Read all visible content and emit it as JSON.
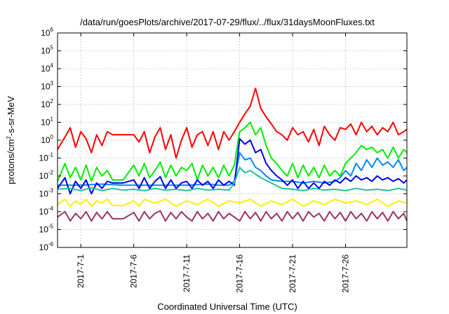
{
  "chart_data": {
    "type": "line",
    "title": "/data/run/goesPlots/archive/2017-07-29/flux/../flux/31daysMoonFluxes.txt",
    "xlabel": "Coordinated Universal Time (UTC)",
    "ylabel": {
      "main": "protons/cm",
      "sup": "2",
      "rest": "-s-sr-MeV"
    },
    "yscale": "log",
    "ylim": [
      1e-06,
      1000000.0
    ],
    "xlim": [
      -2.2,
      30.8
    ],
    "grid": true,
    "ytick_labels": [
      {
        "value": 1e-06,
        "exp": "-6"
      },
      {
        "value": 1e-05,
        "exp": "-5"
      },
      {
        "value": 0.0001,
        "exp": "-4"
      },
      {
        "value": 0.001,
        "exp": "-3"
      },
      {
        "value": 0.01,
        "exp": "-2"
      },
      {
        "value": 0.1,
        "exp": "-1"
      },
      {
        "value": 1,
        "exp": "0"
      },
      {
        "value": 10,
        "exp": "1"
      },
      {
        "value": 100,
        "exp": "2"
      },
      {
        "value": 1000,
        "exp": "3"
      },
      {
        "value": 10000,
        "exp": "4"
      },
      {
        "value": 100000,
        "exp": "5"
      },
      {
        "value": 1000000,
        "exp": "6"
      }
    ],
    "ytick_base": "10",
    "xtick_labels": [
      {
        "day": 0,
        "label": "2017-7-1"
      },
      {
        "day": 5,
        "label": "2017-7-6"
      },
      {
        "day": 10,
        "label": "2017-7-11"
      },
      {
        "day": 15,
        "label": "2017-7-16"
      },
      {
        "day": 20,
        "label": "2017-7-21"
      },
      {
        "day": 25,
        "label": "2017-7-26"
      }
    ],
    "series": [
      {
        "color": "#ff0000",
        "x": [
          -2.2,
          -1.5,
          -1,
          -0.5,
          0,
          0.5,
          1,
          1.5,
          2,
          2.5,
          3,
          4,
          5,
          5.5,
          6,
          6.5,
          7,
          7.5,
          8,
          8.5,
          9,
          9.5,
          10,
          10.5,
          11,
          11.5,
          12,
          12.5,
          13,
          13.5,
          14,
          14.5,
          15,
          15.5,
          16,
          16.5,
          17,
          17.5,
          18,
          18.5,
          19,
          19.5,
          20,
          20.5,
          21,
          21.5,
          22,
          22.5,
          23,
          23.5,
          24,
          24.5,
          25,
          25.5,
          26,
          26.5,
          27,
          27.5,
          28,
          28.5,
          29,
          29.5,
          30,
          30.5,
          30.8
        ],
        "y": [
          0.3,
          1.5,
          5,
          0.4,
          3,
          1.2,
          0.2,
          2,
          0.5,
          3,
          2,
          2,
          2,
          0.8,
          3,
          0.2,
          1.5,
          5,
          0.3,
          2,
          0.1,
          1,
          5,
          0.4,
          2,
          3,
          0.5,
          3,
          0.3,
          3,
          1,
          3,
          10,
          30,
          80,
          800,
          60,
          20,
          8,
          3,
          2,
          1,
          5,
          2,
          3,
          0.8,
          4,
          0.5,
          6,
          2,
          1,
          5,
          4,
          8,
          2,
          10,
          3,
          6,
          2,
          5,
          3,
          10,
          2,
          3,
          4
        ]
      },
      {
        "color": "#00ee00",
        "x": [
          -2.2,
          -1.5,
          -1,
          -0.5,
          0,
          0.5,
          1,
          1.5,
          2,
          2.5,
          3,
          4,
          5,
          5.5,
          6,
          6.5,
          7,
          7.5,
          8,
          8.5,
          9,
          9.5,
          10,
          10.5,
          11,
          11.5,
          12,
          12.5,
          13,
          13.5,
          14,
          14.5,
          15,
          15.5,
          16,
          16.5,
          17,
          17.5,
          18,
          18.5,
          19,
          19.5,
          20,
          20.5,
          21,
          21.5,
          22,
          22.5,
          23,
          23.5,
          24,
          24.5,
          25,
          25.5,
          26,
          26.5,
          27,
          27.5,
          28,
          28.5,
          29,
          29.5,
          30,
          30.5,
          30.8
        ],
        "y": [
          0.005,
          0.05,
          0.008,
          0.03,
          0.006,
          0.04,
          0.005,
          0.03,
          0.01,
          0.02,
          0.006,
          0.006,
          0.04,
          0.01,
          0.05,
          0.008,
          0.02,
          0.06,
          0.008,
          0.04,
          0.01,
          0.03,
          0.02,
          0.05,
          0.006,
          0.04,
          0.01,
          0.03,
          0.008,
          0.04,
          0.01,
          0.04,
          3,
          5,
          10,
          2,
          5,
          0.5,
          0.1,
          0.05,
          0.02,
          0.01,
          0.05,
          0.008,
          0.04,
          0.01,
          0.03,
          0.008,
          0.04,
          0.01,
          0.02,
          0.01,
          0.05,
          0.1,
          0.2,
          0.5,
          0.3,
          0.4,
          0.2,
          0.3,
          0.1,
          0.4,
          0.1,
          0.3,
          0.2
        ]
      },
      {
        "color": "#0088ff",
        "x": [
          -2.2,
          0,
          2,
          4,
          6,
          8,
          10,
          12,
          13,
          14,
          14.5,
          15,
          15.5,
          16,
          16.5,
          17,
          17.5,
          18,
          19,
          20,
          21,
          22,
          23,
          24,
          24.5,
          25,
          25.5,
          26,
          26.5,
          27,
          27.5,
          28,
          28.5,
          29,
          29.5,
          30,
          30.5,
          30.8
        ],
        "y": [
          0.003,
          0.003,
          0.0035,
          0.003,
          0.003,
          0.003,
          0.003,
          0.0035,
          0.003,
          0.003,
          0.005,
          0.2,
          0.08,
          0.1,
          0.03,
          0.02,
          0.01,
          0.006,
          0.005,
          0.005,
          0.004,
          0.005,
          0.004,
          0.005,
          0.008,
          0.02,
          0.01,
          0.05,
          0.02,
          0.08,
          0.03,
          0.1,
          0.04,
          0.06,
          0.03,
          0.08,
          0.02,
          0.03
        ]
      },
      {
        "color": "#0000ee",
        "x": [
          -2.2,
          -1.5,
          -1,
          -0.5,
          0,
          0.5,
          1,
          1.5,
          2,
          2.5,
          3,
          4,
          5,
          5.5,
          6,
          6.5,
          7,
          7.5,
          8,
          8.5,
          9,
          9.5,
          10,
          10.5,
          11,
          11.5,
          12,
          12.5,
          13,
          13.5,
          14,
          14.5,
          15,
          15.5,
          16,
          16.5,
          17,
          17.5,
          18,
          18.5,
          19,
          19.5,
          20,
          20.5,
          21,
          21.5,
          22,
          22.5,
          23,
          23.5,
          24,
          24.5,
          25,
          25.5,
          26,
          26.5,
          27,
          27.5,
          28,
          28.5,
          29,
          29.5,
          30,
          30.5,
          30.8
        ],
        "y": [
          0.002,
          0.008,
          0.001,
          0.005,
          0.002,
          0.006,
          0.001,
          0.004,
          0.002,
          0.005,
          0.004,
          0.004,
          0.006,
          0.002,
          0.008,
          0.002,
          0.005,
          0.009,
          0.002,
          0.006,
          0.002,
          0.004,
          0.005,
          0.002,
          0.006,
          0.003,
          0.005,
          0.002,
          0.006,
          0.003,
          0.005,
          0.003,
          1.2,
          0.6,
          1,
          0.2,
          0.3,
          0.05,
          0.02,
          0.01,
          0.006,
          0.003,
          0.006,
          0.002,
          0.005,
          0.002,
          0.004,
          0.002,
          0.005,
          0.003,
          0.006,
          0.004,
          0.008,
          0.005,
          0.01,
          0.006,
          0.008,
          0.005,
          0.01,
          0.006,
          0.008,
          0.005,
          0.007,
          0.004,
          0.006
        ]
      },
      {
        "color": "#20c0a0",
        "x": [
          -2.2,
          -1,
          0,
          1,
          2,
          3,
          4,
          5,
          6,
          7,
          8,
          9,
          10,
          11,
          12,
          13,
          14,
          14.5,
          15,
          15.5,
          16,
          17,
          18,
          19,
          20,
          21,
          22,
          23,
          24,
          25,
          26,
          27,
          28,
          29,
          30,
          30.8
        ],
        "y": [
          0.0018,
          0.002,
          0.0015,
          0.0022,
          0.0015,
          0.002,
          0.0016,
          0.0018,
          0.0015,
          0.002,
          0.0016,
          0.0018,
          0.0015,
          0.002,
          0.0016,
          0.0018,
          0.0016,
          0.004,
          0.03,
          0.015,
          0.02,
          0.008,
          0.004,
          0.002,
          0.0018,
          0.0015,
          0.002,
          0.0016,
          0.0018,
          0.0015,
          0.002,
          0.0016,
          0.0018,
          0.0015,
          0.002,
          0.0016
        ]
      },
      {
        "color": "#ffee00",
        "x": [
          -2.2,
          -1.5,
          -1,
          -0.5,
          0,
          0.5,
          1,
          1.5,
          2,
          2.5,
          3,
          4,
          5,
          5.5,
          6,
          7,
          8,
          9,
          10,
          11,
          12,
          13,
          14,
          15,
          16,
          17,
          18,
          19,
          20,
          21,
          22,
          23,
          24,
          25,
          26,
          27,
          28,
          29,
          30,
          30.8
        ],
        "y": [
          0.00025,
          0.0005,
          0.0002,
          0.0004,
          0.00025,
          0.0005,
          0.0002,
          0.0004,
          0.0003,
          0.0005,
          0.00022,
          0.00022,
          0.0004,
          0.0002,
          0.0005,
          0.0003,
          0.0005,
          0.0002,
          0.0004,
          0.00025,
          0.0005,
          0.0002,
          0.0004,
          0.0003,
          0.0005,
          0.0002,
          0.0004,
          0.00025,
          0.0005,
          0.0002,
          0.0004,
          0.00025,
          0.0005,
          0.0003,
          0.0004,
          0.00025,
          0.0005,
          0.0002,
          0.0004,
          0.0003
        ]
      },
      {
        "color": "#993366",
        "x": [
          -2.2,
          -1.5,
          -1,
          -0.5,
          0,
          0.5,
          1,
          1.5,
          2,
          2.5,
          3,
          4,
          5,
          5.5,
          6,
          6.5,
          7,
          7.5,
          8,
          8.5,
          9,
          9.5,
          10,
          10.5,
          11,
          11.5,
          12,
          12.5,
          13,
          13.5,
          14,
          14.5,
          15,
          15.5,
          16,
          16.5,
          17,
          17.5,
          18,
          18.5,
          19,
          19.5,
          20,
          20.5,
          21,
          21.5,
          22,
          22.5,
          23,
          23.5,
          24,
          24.5,
          25,
          25.5,
          26,
          26.5,
          27,
          27.5,
          28,
          28.5,
          29,
          29.5,
          30,
          30.5,
          30.8
        ],
        "y": [
          5e-05,
          0.0001,
          3e-05,
          8e-05,
          4e-05,
          0.0001,
          3e-05,
          9e-05,
          4e-05,
          0.0001,
          4e-05,
          4e-05,
          9e-05,
          3e-05,
          0.0001,
          4e-05,
          8e-05,
          0.00011,
          3e-05,
          9e-05,
          4e-05,
          0.0001,
          5e-05,
          3e-05,
          0.0001,
          4e-05,
          8e-05,
          3e-05,
          0.0001,
          4e-05,
          8e-05,
          5e-05,
          3e-05,
          0.0001,
          4e-05,
          9e-05,
          3e-05,
          0.0001,
          4e-05,
          8e-05,
          3e-05,
          0.0001,
          4e-05,
          9e-05,
          3e-05,
          0.0001,
          5e-05,
          8e-05,
          3e-05,
          0.0001,
          4e-05,
          9e-05,
          3e-05,
          0.0001,
          4e-05,
          8e-05,
          3e-05,
          0.0001,
          4e-05,
          9e-05,
          3e-05,
          0.0001,
          4e-05,
          8e-05,
          3e-05
        ]
      }
    ]
  }
}
